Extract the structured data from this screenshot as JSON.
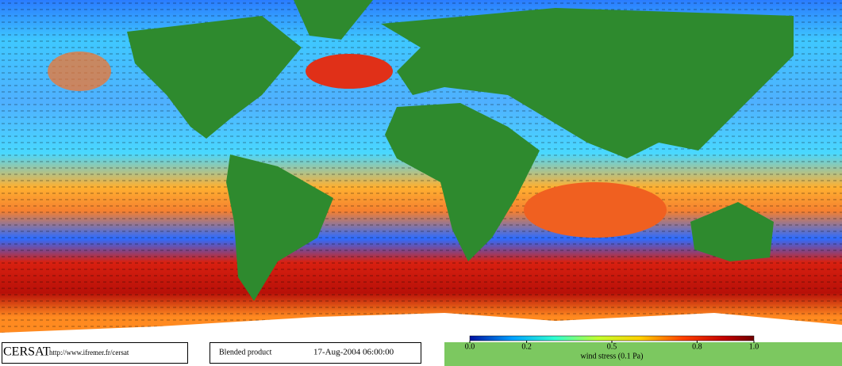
{
  "footer": {
    "logo": "CERSAT",
    "url": "http://www.ifremer.fr/cersat",
    "product": "Blended product",
    "date": "17-Aug-2004 06:00:00"
  },
  "colorbar": {
    "lim": [
      0,
      1
    ],
    "ticks": [
      {
        "value": 0,
        "label": "0.0"
      },
      0.2,
      0.5,
      0.8,
      {
        "value": 1,
        "label": "1.0"
      }
    ],
    "label": "wind stress (0.1 Pa)"
  }
}
